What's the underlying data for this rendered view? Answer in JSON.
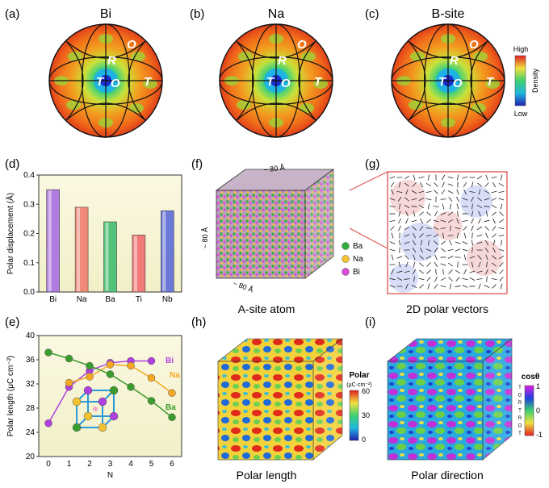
{
  "panels": {
    "a": {
      "label": "(a)",
      "title": "Bi"
    },
    "b": {
      "label": "(b)",
      "title": "Na"
    },
    "c": {
      "label": "(c)",
      "title": "B-site"
    },
    "d": {
      "label": "(d)"
    },
    "e": {
      "label": "(e)"
    },
    "f": {
      "label": "(f)",
      "caption": "A-site atom",
      "dim_top": "~ 80 Å",
      "dim_left": "~ 80 Å",
      "dim_bottom": "~ 80 Å",
      "legend": [
        {
          "name": "Ba",
          "color": "#2fae3a"
        },
        {
          "name": "Na",
          "color": "#f2c230"
        },
        {
          "name": "Bi",
          "color": "#d94bd8"
        }
      ]
    },
    "g": {
      "label": "(g)",
      "caption": "2D polar vectors"
    },
    "h": {
      "label": "(h)",
      "caption": "Polar length",
      "colorbar_title": "Polar",
      "colorbar_unit": "(μC·cm⁻²)",
      "ticks": [
        "60",
        "30",
        "0"
      ]
    },
    "i": {
      "label": "(i)",
      "caption": "Polar direction",
      "colorbar_title": "cosθ",
      "ticks": [
        "1",
        "0",
        "-1"
      ],
      "side_labels": [
        "T",
        "O",
        "R",
        "T",
        "R",
        "O",
        "T"
      ]
    }
  },
  "stereo": {
    "letters": [
      "T",
      "R",
      "O",
      "O",
      "T"
    ]
  },
  "density_colorbar": {
    "high": "High",
    "low": "Low",
    "title": "Density"
  },
  "chart_data": [
    {
      "type": "bar",
      "categories": [
        "Bi",
        "Na",
        "Ba",
        "Ti",
        "Nb"
      ],
      "values": [
        0.35,
        0.29,
        0.24,
        0.195,
        0.278
      ],
      "colors": [
        "#b07ce0",
        "#f08a78",
        "#52c27a",
        "#f07a7a",
        "#6a78d8"
      ],
      "ylabel": "Polar displacement (Å)",
      "ylim": [
        0,
        0.4
      ],
      "yticks": [
        "0.0",
        "0.1",
        "0.2",
        "0.3",
        "0.4"
      ]
    },
    {
      "type": "line",
      "x": [
        0,
        1,
        2,
        3,
        4,
        5,
        6
      ],
      "xticks": [
        "0",
        "1",
        "2",
        "3",
        "4",
        "5",
        "6"
      ],
      "xlabel": "N",
      "ylabel": "Polar length (μC cm⁻²)",
      "ylim": [
        20,
        40
      ],
      "yticks": [
        "20",
        "24",
        "28",
        "32",
        "36",
        "40"
      ],
      "series": [
        {
          "name": "Bi",
          "color": "#b040e0",
          "x": [
            0,
            1,
            2,
            3,
            4,
            5
          ],
          "values": [
            25.5,
            31.5,
            34.2,
            35.5,
            35.8,
            35.8
          ]
        },
        {
          "name": "Na",
          "color": "#f5a623",
          "x": [
            1,
            2,
            3,
            4,
            5,
            6
          ],
          "values": [
            32.2,
            33.2,
            35.2,
            35.0,
            33.0,
            30.5
          ]
        },
        {
          "name": "Ba",
          "color": "#3a9c2e",
          "x": [
            0,
            1,
            2,
            3,
            4,
            5,
            6
          ],
          "values": [
            37.2,
            36.2,
            35.0,
            33.6,
            31.5,
            29.2,
            26.5
          ]
        }
      ]
    }
  ]
}
